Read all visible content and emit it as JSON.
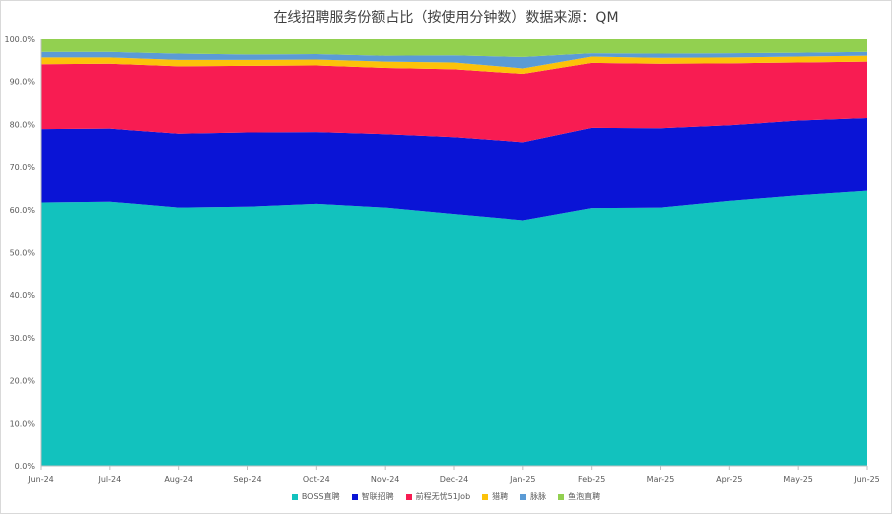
{
  "chart_data": {
    "type": "area",
    "stacked": true,
    "percent": true,
    "title": "在线招聘服务份额占比（按使用分钟数）数据来源：QM",
    "categories": [
      "Jun-24",
      "Jul-24",
      "Aug-24",
      "Sep-24",
      "Oct-24",
      "Nov-24",
      "Dec-24",
      "Jan-25",
      "Feb-25",
      "Mar-25",
      "Apr-25",
      "May-25",
      "Jun-25"
    ],
    "y_ticks": [
      "0.0%",
      "10.0%",
      "20.0%",
      "30.0%",
      "40.0%",
      "50.0%",
      "60.0%",
      "70.0%",
      "80.0%",
      "90.0%",
      "100.0%"
    ],
    "ylim": [
      0,
      100
    ],
    "grid": false,
    "legend_position": "bottom",
    "series": [
      {
        "name": "BOSS直聘",
        "color": "#12c2be",
        "values": [
          61.7,
          61.9,
          60.5,
          60.7,
          61.4,
          60.5,
          59.0,
          57.5,
          60.4,
          60.5,
          62.1,
          63.4,
          64.5
        ]
      },
      {
        "name": "智联招聘",
        "color": "#0a14d6",
        "values": [
          17.2,
          17.1,
          17.3,
          17.4,
          16.8,
          17.2,
          18.0,
          18.3,
          18.8,
          18.6,
          17.7,
          17.5,
          17.0
        ]
      },
      {
        "name": "前程无忧51Job",
        "color": "#f81c52",
        "values": [
          15.2,
          15.2,
          15.8,
          15.6,
          15.6,
          15.5,
          15.9,
          16.0,
          15.2,
          15.1,
          14.5,
          13.6,
          13.2
        ]
      },
      {
        "name": "猎聘",
        "color": "#fcc20a",
        "values": [
          1.6,
          1.5,
          1.5,
          1.4,
          1.4,
          1.5,
          1.6,
          1.3,
          1.5,
          1.4,
          1.4,
          1.4,
          1.4
        ]
      },
      {
        "name": "脉脉",
        "color": "#5b9bd5",
        "values": [
          1.3,
          1.3,
          1.5,
          1.3,
          1.3,
          1.4,
          1.7,
          2.7,
          0.8,
          1.0,
          1.0,
          0.9,
          0.9
        ]
      },
      {
        "name": "鱼泡直聘",
        "color": "#92d050",
        "values": [
          3.0,
          3.0,
          3.4,
          3.6,
          3.5,
          3.9,
          3.8,
          4.2,
          3.3,
          3.4,
          3.3,
          3.2,
          3.0
        ]
      }
    ]
  }
}
